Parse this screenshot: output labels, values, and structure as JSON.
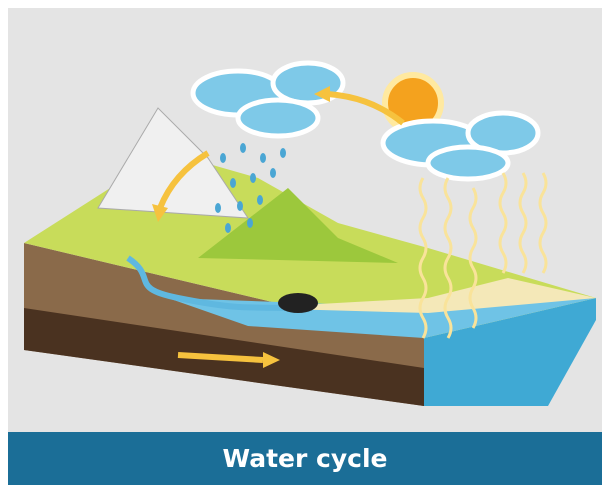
{
  "caption": "Water cycle"
}
